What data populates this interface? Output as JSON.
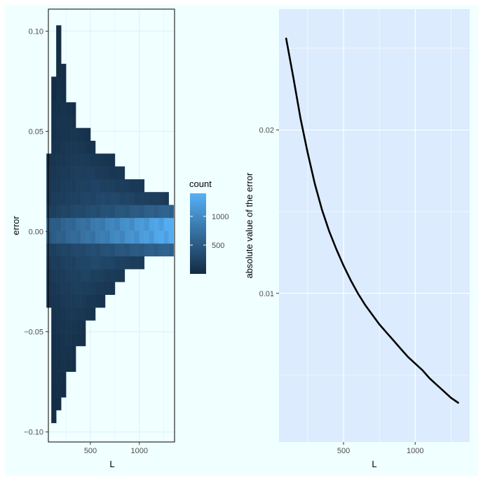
{
  "chart_data": [
    {
      "type": "heatmap",
      "xlabel": "L",
      "ylabel": "error",
      "xlim": [
        70,
        1360
      ],
      "ylim": [
        -0.105,
        0.111
      ],
      "xticks": [
        500,
        1000
      ],
      "yticks": [
        -0.1,
        -0.05,
        0.0,
        0.05,
        0.1
      ],
      "xtick_labels": [
        "500",
        "1000"
      ],
      "ytick_labels": [
        "−0.10",
        "−0.05",
        "0.00",
        "0.05",
        "0.10"
      ],
      "grid": true,
      "bin_width_x": 50,
      "bin_width_y": 0.0064,
      "bins_y_center": [
        -0.0923,
        -0.0859,
        -0.0795,
        -0.0731,
        -0.0667,
        -0.0603,
        -0.0539,
        -0.0475,
        -0.0411,
        -0.0347,
        -0.0283,
        -0.0219,
        -0.0155,
        -0.0091,
        -0.0027,
        0.0037,
        0.0101,
        0.0165,
        0.0229,
        0.0293,
        0.0357,
        0.0421,
        0.0485,
        0.0549,
        0.0613,
        0.0677,
        0.0741,
        0.0805,
        0.0869,
        0.0933,
        0.0997
      ],
      "rows": [
        {
          "y": -0.0923,
          "xmax": 150,
          "xmin": 100,
          "peak": 30
        },
        {
          "y": -0.0859,
          "xmax": 200,
          "xmin": 100,
          "peak": 40
        },
        {
          "y": -0.0795,
          "xmax": 250,
          "xmin": 100,
          "peak": 50
        },
        {
          "y": -0.0731,
          "xmax": 250,
          "xmin": 100,
          "peak": 60
        },
        {
          "y": -0.0667,
          "xmax": 350,
          "xmin": 100,
          "peak": 70
        },
        {
          "y": -0.0603,
          "xmax": 350,
          "xmin": 100,
          "peak": 80
        },
        {
          "y": -0.0539,
          "xmax": 450,
          "xmin": 100,
          "peak": 100
        },
        {
          "y": -0.0475,
          "xmax": 450,
          "xmin": 100,
          "peak": 120
        },
        {
          "y": -0.0411,
          "xmax": 550,
          "xmin": 100,
          "peak": 150
        },
        {
          "y": -0.0347,
          "xmax": 650,
          "xmin": 50,
          "peak": 180
        },
        {
          "y": -0.0283,
          "xmax": 750,
          "xmin": 50,
          "peak": 220
        },
        {
          "y": -0.0219,
          "xmax": 850,
          "xmin": 50,
          "peak": 260
        },
        {
          "y": -0.0155,
          "xmax": 1050,
          "xmin": 50,
          "peak": 320
        },
        {
          "y": -0.0091,
          "xmax": 1350,
          "xmin": 50,
          "peak": 600
        },
        {
          "y": -0.0027,
          "xmax": 1350,
          "xmin": 50,
          "peak": 1350
        },
        {
          "y": 0.0037,
          "xmax": 1350,
          "xmin": 50,
          "peak": 1350
        },
        {
          "y": 0.0101,
          "xmax": 1350,
          "xmin": 50,
          "peak": 600
        },
        {
          "y": 0.0165,
          "xmax": 1300,
          "xmin": 50,
          "peak": 320
        },
        {
          "y": 0.0229,
          "xmax": 1050,
          "xmin": 50,
          "peak": 260
        },
        {
          "y": 0.0293,
          "xmax": 850,
          "xmin": 50,
          "peak": 220
        },
        {
          "y": 0.0357,
          "xmax": 750,
          "xmin": 50,
          "peak": 180
        },
        {
          "y": 0.0421,
          "xmax": 550,
          "xmin": 100,
          "peak": 150
        },
        {
          "y": 0.0485,
          "xmax": 500,
          "xmin": 100,
          "peak": 120
        },
        {
          "y": 0.0549,
          "xmax": 350,
          "xmin": 100,
          "peak": 100
        },
        {
          "y": 0.0613,
          "xmax": 350,
          "xmin": 100,
          "peak": 80
        },
        {
          "y": 0.0677,
          "xmax": 250,
          "xmin": 100,
          "peak": 60
        },
        {
          "y": 0.0741,
          "xmax": 250,
          "xmin": 100,
          "peak": 50
        },
        {
          "y": 0.0805,
          "xmax": 250,
          "xmin": 150,
          "peak": 40
        },
        {
          "y": 0.0869,
          "xmax": 200,
          "xmin": 150,
          "peak": 30
        },
        {
          "y": 0.0933,
          "xmax": 200,
          "xmin": 150,
          "peak": 20
        },
        {
          "y": 0.0997,
          "xmax": 200,
          "xmin": 150,
          "peak": 15
        }
      ],
      "legend": {
        "title": "count",
        "labels": [
          "500",
          "1000"
        ],
        "values": [
          500,
          1000
        ],
        "range": [
          0,
          1400
        ],
        "placement": "right"
      },
      "colors": {
        "low": "#132b43",
        "high": "#56b1f7",
        "panel": "#f0ffff",
        "grid": "#e0f0fb"
      }
    },
    {
      "type": "line",
      "xlabel": "L",
      "ylabel": "absolute value of the error",
      "xlim": [
        50,
        1380
      ],
      "ylim": [
        0.0009,
        0.0274
      ],
      "xticks": [
        500,
        1000
      ],
      "yticks": [
        0.01,
        0.02
      ],
      "xtick_labels": [
        "500",
        "1000"
      ],
      "ytick_labels": [
        "0.01",
        "0.02"
      ],
      "grid": true,
      "series": [
        {
          "x": [
            100,
            150,
            200,
            250,
            300,
            350,
            400,
            450,
            500,
            550,
            600,
            650,
            700,
            750,
            800,
            850,
            900,
            950,
            1000,
            1050,
            1100,
            1150,
            1200,
            1250,
            1300
          ],
          "y": [
            0.0256,
            0.0232,
            0.0207,
            0.0186,
            0.0167,
            0.0151,
            0.0138,
            0.0127,
            0.0117,
            0.0108,
            0.01,
            0.0093,
            0.0087,
            0.0081,
            0.0076,
            0.0071,
            0.0066,
            0.0061,
            0.0057,
            0.0053,
            0.0048,
            0.0044,
            0.004,
            0.0036,
            0.0033
          ]
        }
      ],
      "colors": {
        "line": "#000000",
        "panel": "#dcebfd",
        "grid": "#ffffff"
      }
    }
  ]
}
